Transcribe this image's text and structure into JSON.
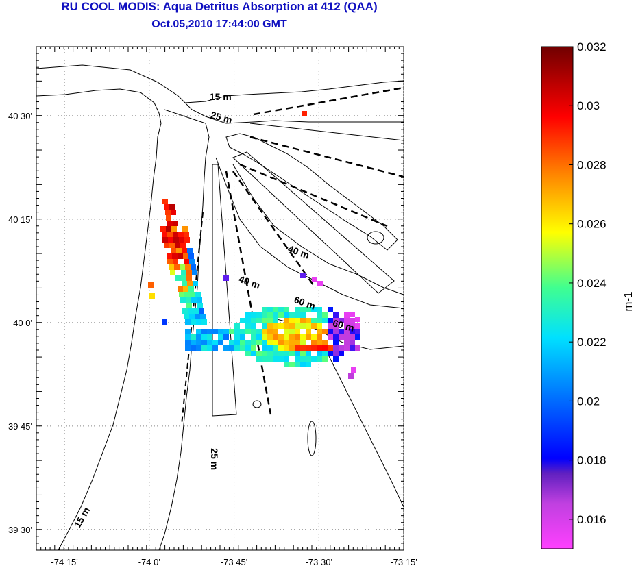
{
  "title": "RU COOL MODIS: Aqua Detritus Absorption at 412 (QAA)",
  "subtitle": "Oct.05,2010 17:44:00 GMT",
  "map": {
    "lon_range": [
      -74.333,
      -73.25
    ],
    "lat_range": [
      39.45,
      40.667
    ],
    "x_ticks": [
      {
        "value": -74.25,
        "label": "-74 15'"
      },
      {
        "value": -74.0,
        "label": "-74 0'"
      },
      {
        "value": -73.75,
        "label": "-73 45'"
      },
      {
        "value": -73.5,
        "label": "-73 30'"
      },
      {
        "value": -73.25,
        "label": "-73 15'"
      }
    ],
    "y_ticks": [
      {
        "value": 40.5,
        "label": "40 30'"
      },
      {
        "value": 40.25,
        "label": "40 15'"
      },
      {
        "value": 40.0,
        "label": "40 0'"
      },
      {
        "value": 39.75,
        "label": "39 45'"
      },
      {
        "value": 39.5,
        "label": "39 30'"
      }
    ],
    "grid": "dotted",
    "contour_labels": [
      {
        "text": "15 m",
        "lon": -73.79,
        "lat": 40.538,
        "angle": 0
      },
      {
        "text": "25 m",
        "lon": -73.79,
        "lat": 40.488,
        "angle": 15
      },
      {
        "text": "40 m",
        "lon": -73.563,
        "lat": 40.163,
        "angle": 20
      },
      {
        "text": "40 m",
        "lon": -73.708,
        "lat": 40.09,
        "angle": 20
      },
      {
        "text": "60 m",
        "lon": -73.545,
        "lat": 40.04,
        "angle": 20
      },
      {
        "text": "60 m",
        "lon": -73.43,
        "lat": 39.985,
        "angle": 15
      },
      {
        "text": "25 m",
        "lon": -73.818,
        "lat": 39.67,
        "angle": 90
      },
      {
        "text": "15 m",
        "lon": -74.19,
        "lat": 39.525,
        "angle": -60
      }
    ]
  },
  "colorbar": {
    "min": 0.015,
    "max": 0.032,
    "ticks": [
      "0.032",
      "0.03",
      "0.028",
      "0.026",
      "0.024",
      "0.022",
      "0.02",
      "0.018",
      "0.016"
    ],
    "tick_values": [
      0.032,
      0.03,
      0.028,
      0.026,
      0.024,
      0.022,
      0.02,
      0.018,
      0.016
    ],
    "unit": "m-1",
    "colors": [
      "#ff40ff",
      "#9b30d0",
      "#0000ff",
      "#0080ff",
      "#00ffff",
      "#40ff80",
      "#ffff00",
      "#ff8000",
      "#ff0000",
      "#800000"
    ]
  }
}
